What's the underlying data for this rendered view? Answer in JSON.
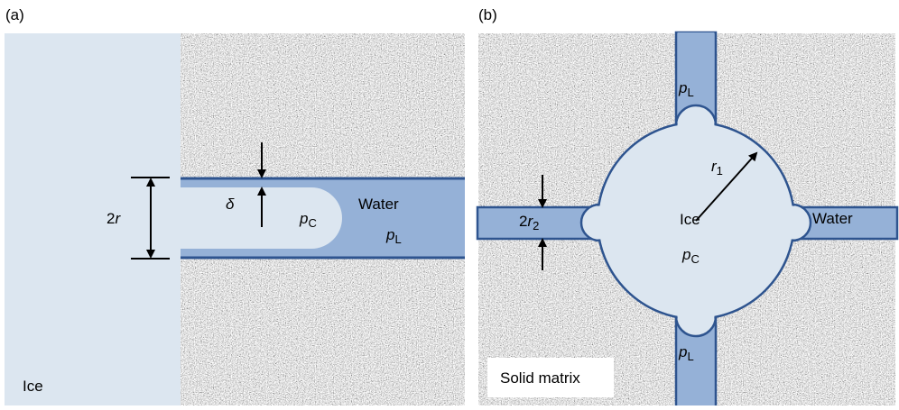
{
  "panel_a": {
    "label": "(a)",
    "ice": "Ice",
    "width": {
      "prefix": "2",
      "var": "r"
    },
    "gap": "δ",
    "pressure_ice": {
      "base": "p",
      "sub": "C"
    },
    "water": "Water",
    "pressure_water": {
      "base": "p",
      "sub": "L"
    }
  },
  "panel_b": {
    "label": "(b)",
    "pressure_top": {
      "base": "p",
      "sub": "L"
    },
    "radius": {
      "base": "r",
      "sub": "1"
    },
    "ice": "Ice",
    "water": "Water",
    "pressure_ice": {
      "base": "p",
      "sub": "C"
    },
    "pressure_bottom": {
      "base": "p",
      "sub": "L"
    },
    "channel_width": {
      "prefix": "2",
      "base": "r",
      "sub": "2"
    },
    "matrix": "Solid matrix"
  }
}
